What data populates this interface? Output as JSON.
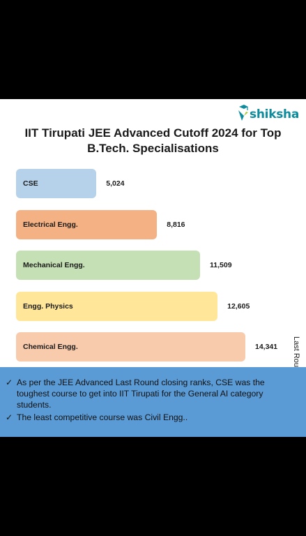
{
  "brand": {
    "name": "shiksha"
  },
  "colors": {
    "card_bg": "#ffffff",
    "notes_bg": "#5b9bd5",
    "brand": "#0c8c9c"
  },
  "chart_data": {
    "type": "bar",
    "orientation": "horizontal",
    "title": "IIT Tirupati JEE Advanced Cutoff 2024 for Top B.Tech. Specialisations",
    "ylabel": "Last Round Cutoff",
    "categories": [
      "CSE",
      "Electrical Engg.",
      "Mechanical Engg.",
      "Engg. Physics",
      "Chemical Engg."
    ],
    "values": [
      5024,
      8816,
      11509,
      12605,
      14341
    ],
    "value_labels": [
      "5,024",
      "8,816",
      "11,509",
      "12,605",
      "14,341"
    ],
    "bar_colors": [
      "#b6d1ea",
      "#f4b183",
      "#c5e0b4",
      "#ffe699",
      "#f8cbad"
    ],
    "grid": false,
    "legend": "none"
  },
  "notes": [
    {
      "icon": "check-icon",
      "text": "As per the JEE Advanced Last Round closing ranks, CSE was the toughest course to get into IIT Tirupati for the General AI category students."
    },
    {
      "icon": "check-icon",
      "text": "The least competitive course was Civil Engg.."
    }
  ]
}
